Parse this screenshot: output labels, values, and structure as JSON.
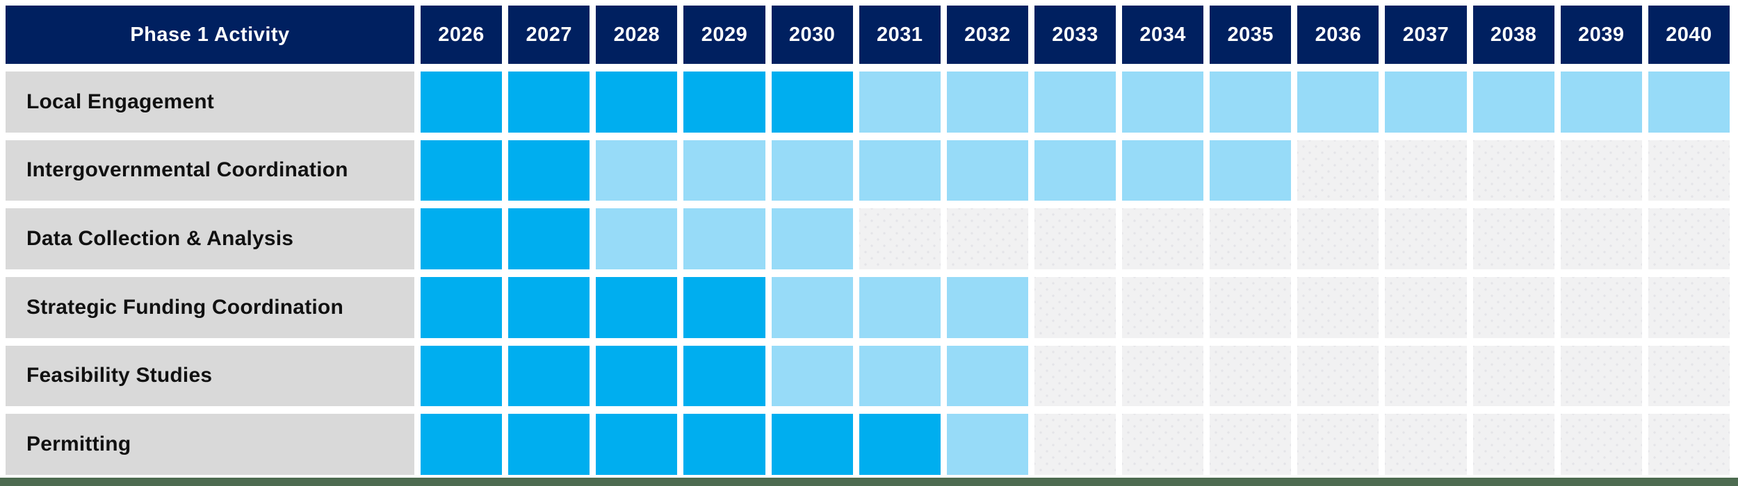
{
  "chart_data": {
    "type": "heatmap",
    "title": "Phase 1 Activity",
    "x_labels": [
      "2026",
      "2027",
      "2028",
      "2029",
      "2030",
      "2031",
      "2032",
      "2033",
      "2034",
      "2035",
      "2036",
      "2037",
      "2038",
      "2039",
      "2040"
    ],
    "cell_value_key": "dark = bright blue filled year, light = pale blue filled year, none = inactive dotted year",
    "rows": [
      {
        "label": "Local Engagement",
        "cells": [
          "dark",
          "dark",
          "dark",
          "dark",
          "dark",
          "light",
          "light",
          "light",
          "light",
          "light",
          "light",
          "light",
          "light",
          "light",
          "light"
        ]
      },
      {
        "label": "Intergovernmental Coordination",
        "cells": [
          "dark",
          "dark",
          "light",
          "light",
          "light",
          "light",
          "light",
          "light",
          "light",
          "light",
          "none",
          "none",
          "none",
          "none",
          "none"
        ]
      },
      {
        "label": "Data Collection & Analysis",
        "cells": [
          "dark",
          "dark",
          "light",
          "light",
          "light",
          "none",
          "none",
          "none",
          "none",
          "none",
          "none",
          "none",
          "none",
          "none",
          "none"
        ]
      },
      {
        "label": "Strategic Funding Coordination",
        "cells": [
          "dark",
          "dark",
          "dark",
          "dark",
          "light",
          "light",
          "light",
          "none",
          "none",
          "none",
          "none",
          "none",
          "none",
          "none",
          "none"
        ]
      },
      {
        "label": "Feasibility Studies",
        "cells": [
          "dark",
          "dark",
          "dark",
          "dark",
          "light",
          "light",
          "light",
          "none",
          "none",
          "none",
          "none",
          "none",
          "none",
          "none",
          "none"
        ]
      },
      {
        "label": "Permitting",
        "cells": [
          "dark",
          "dark",
          "dark",
          "dark",
          "dark",
          "dark",
          "light",
          "none",
          "none",
          "none",
          "none",
          "none",
          "none",
          "none",
          "none"
        ]
      }
    ]
  },
  "colors": {
    "background": "#FFFFFF",
    "header_bg": "#002060",
    "header_text": "#FFFFFF",
    "row_label_bg": "#D9D9D9",
    "row_label_text": "#111111",
    "cell_dark": "#00AEEF",
    "cell_light": "#97DBF8",
    "cell_empty": "#F1F1F2",
    "footer_bar": "#4D6B50"
  }
}
